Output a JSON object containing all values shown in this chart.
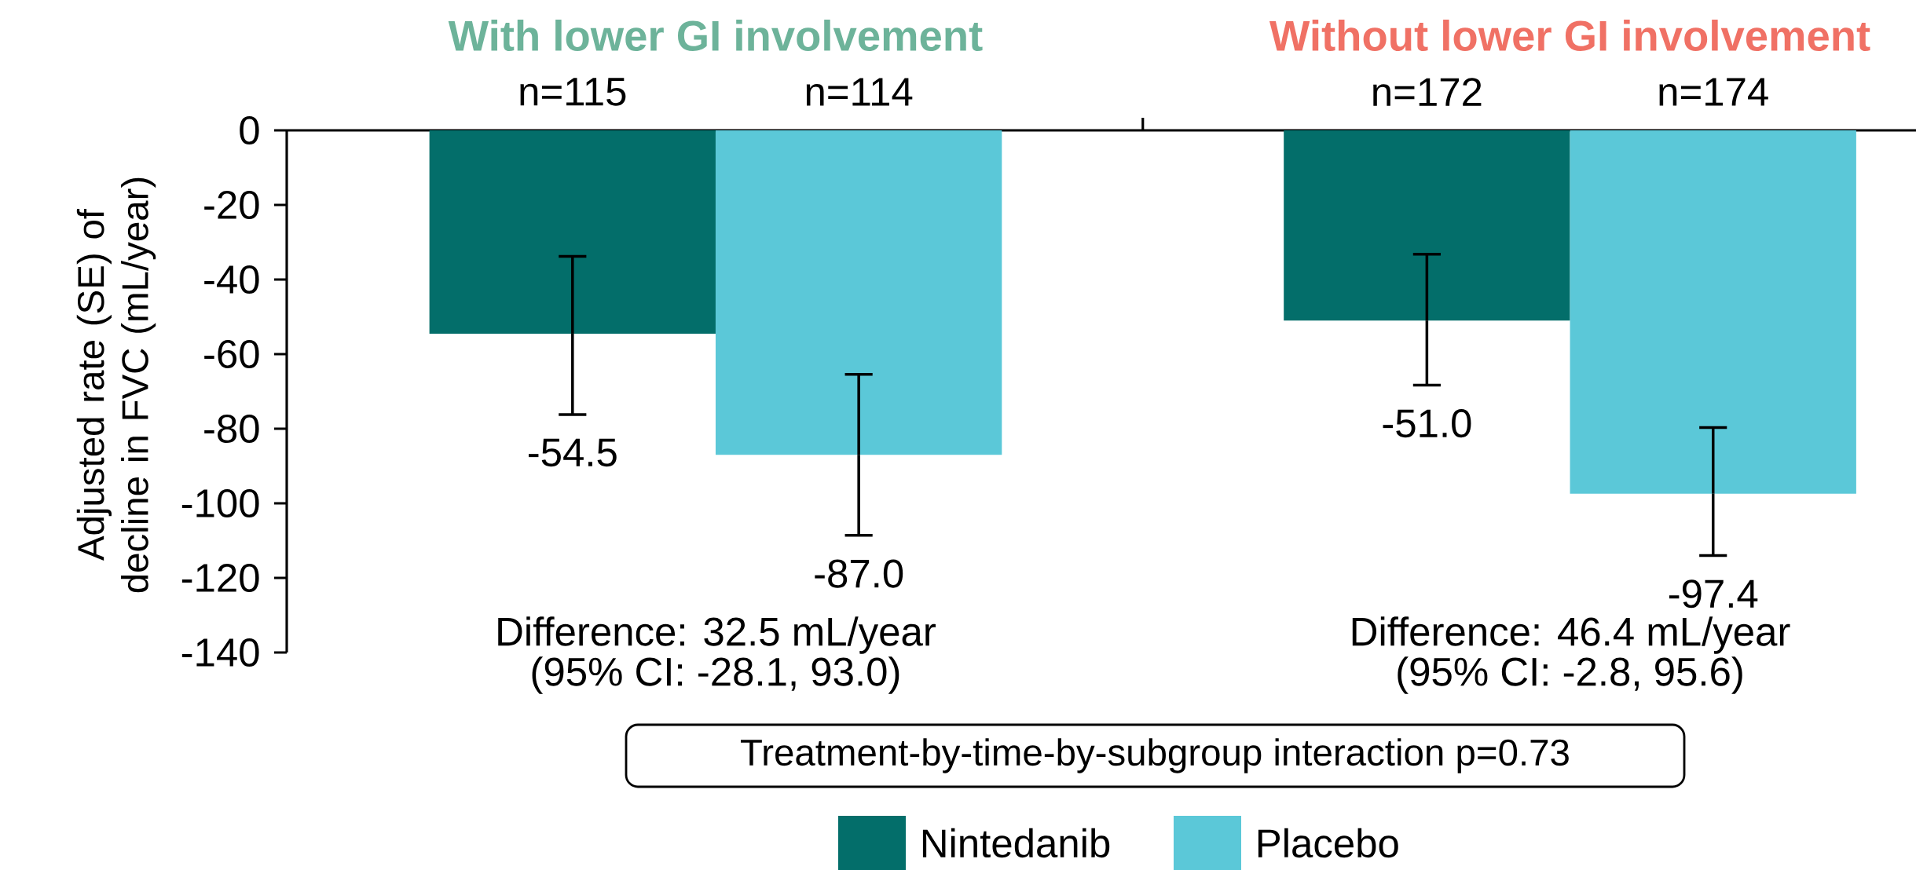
{
  "chart_data": {
    "type": "bar",
    "ylabel": "Adjusted rate (SE) of decline in FVC (mL/year)",
    "categories": [
      "With lower GI involvement",
      "Without lower GI involvement"
    ],
    "series": [
      {
        "name": "Nintedanib",
        "color": "#036e6a",
        "values": [
          -54.5,
          -51.0
        ],
        "errors": [
          [
            -76.2,
            -33.8
          ],
          [
            -68.3,
            -33.2
          ]
        ],
        "value_labels": [
          "-54.5",
          "-51.0"
        ]
      },
      {
        "name": "Placebo",
        "color": "#5bc8d8",
        "values": [
          -87.0,
          -97.4
        ],
        "errors": [
          [
            -108.6,
            -65.4
          ],
          [
            -114.0,
            -79.7
          ]
        ],
        "value_labels": [
          "-87.0",
          "-97.4"
        ]
      }
    ],
    "ylim": [
      -140,
      0
    ],
    "yticks": [
      -140,
      -120,
      -100,
      -80,
      -60,
      -40,
      -20,
      0
    ],
    "legend": "bottom",
    "annotations": [
      "n=115",
      "n=114",
      "n=172",
      "n=174",
      "Difference: 32.5 mL/year",
      "(95% CI: -28.1, 93.0)",
      "Difference: 46.4 mL/year",
      "(95% CI: -2.8, 95.6)",
      "Treatment-by-time-by-subgroup interaction p=0.73"
    ]
  }
}
